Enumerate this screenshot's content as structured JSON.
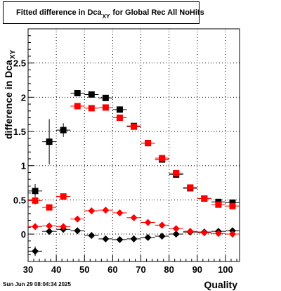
{
  "title": {
    "main": "Fitted difference in Dca",
    "subscript": "XY",
    "suffix": "for Global Rec All NoHits"
  },
  "timestamp": "Sun Jun 29 08:04:34 2025",
  "chart_data": {
    "type": "scatter",
    "xlabel": "Quality",
    "ylabel": "difference in Dca",
    "ylabel_subscript": "XY",
    "xlim": [
      30,
      105
    ],
    "ylim": [
      -0.4,
      3.0
    ],
    "xticks": [
      "30",
      "40",
      "50",
      "60",
      "70",
      "80",
      "90",
      "100"
    ],
    "yticks": [
      "0",
      "0.5",
      "1",
      "1.5",
      "2",
      "2.5"
    ],
    "grid": true,
    "series": [
      {
        "marker": "square",
        "color": "#000000",
        "points": [
          {
            "x": 32.5,
            "y": 0.63,
            "err": 0.1
          },
          {
            "x": 37.5,
            "y": 1.35,
            "err": 0.33
          },
          {
            "x": 42.5,
            "y": 1.52,
            "err": 0.1
          },
          {
            "x": 47.5,
            "y": 2.06,
            "err": 0.03
          },
          {
            "x": 52.5,
            "y": 2.04,
            "err": 0.02
          },
          {
            "x": 57.5,
            "y": 1.99,
            "err": 0.02
          },
          {
            "x": 62.5,
            "y": 1.82,
            "err": 0.02
          },
          {
            "x": 67.5,
            "y": 1.58,
            "err": 0.02
          },
          {
            "x": 72.5,
            "y": 1.33,
            "err": 0.02
          },
          {
            "x": 77.5,
            "y": 1.09,
            "err": 0.02
          },
          {
            "x": 82.5,
            "y": 0.87,
            "err": 0.02
          },
          {
            "x": 87.5,
            "y": 0.67,
            "err": 0.02
          },
          {
            "x": 92.5,
            "y": 0.52,
            "err": 0.02
          },
          {
            "x": 97.5,
            "y": 0.47,
            "err": 0.02
          },
          {
            "x": 102.5,
            "y": 0.46,
            "err": 0.02
          }
        ]
      },
      {
        "marker": "square",
        "color": "#ff0000",
        "points": [
          {
            "x": 32.5,
            "y": 0.49,
            "err": 0.06
          },
          {
            "x": 37.5,
            "y": 0.39,
            "err": 0.03
          },
          {
            "x": 42.5,
            "y": 0.55,
            "err": 0.02
          },
          {
            "x": 47.5,
            "y": 1.87,
            "err": 0.02
          },
          {
            "x": 52.5,
            "y": 1.84,
            "err": 0.02
          },
          {
            "x": 57.5,
            "y": 1.85,
            "err": 0.02
          },
          {
            "x": 62.5,
            "y": 1.7,
            "err": 0.02
          },
          {
            "x": 67.5,
            "y": 1.57,
            "err": 0.02
          },
          {
            "x": 72.5,
            "y": 1.33,
            "err": 0.02
          },
          {
            "x": 77.5,
            "y": 1.11,
            "err": 0.02
          },
          {
            "x": 82.5,
            "y": 0.89,
            "err": 0.02
          },
          {
            "x": 87.5,
            "y": 0.68,
            "err": 0.02
          },
          {
            "x": 92.5,
            "y": 0.52,
            "err": 0.02
          },
          {
            "x": 97.5,
            "y": 0.43,
            "err": 0.02
          },
          {
            "x": 102.5,
            "y": 0.41,
            "err": 0.02
          }
        ]
      },
      {
        "marker": "diamond",
        "color": "#000000",
        "points": [
          {
            "x": 32.5,
            "y": -0.25,
            "err": 0.07
          },
          {
            "x": 37.5,
            "y": 0.04,
            "err": 0.04
          },
          {
            "x": 42.5,
            "y": 0.07,
            "err": 0.03
          },
          {
            "x": 47.5,
            "y": 0.05,
            "err": 0.02
          },
          {
            "x": 52.5,
            "y": -0.02,
            "err": 0.02
          },
          {
            "x": 57.5,
            "y": -0.07,
            "err": 0.02
          },
          {
            "x": 62.5,
            "y": -0.08,
            "err": 0.02
          },
          {
            "x": 67.5,
            "y": -0.07,
            "err": 0.02
          },
          {
            "x": 72.5,
            "y": -0.05,
            "err": 0.02
          },
          {
            "x": 77.5,
            "y": -0.03,
            "err": 0.02
          },
          {
            "x": 82.5,
            "y": 0.0,
            "err": 0.02
          },
          {
            "x": 87.5,
            "y": 0.03,
            "err": 0.02
          },
          {
            "x": 92.5,
            "y": 0.03,
            "err": 0.02
          },
          {
            "x": 97.5,
            "y": 0.04,
            "err": 0.02
          },
          {
            "x": 102.5,
            "y": 0.05,
            "err": 0.02
          }
        ]
      },
      {
        "marker": "diamond",
        "color": "#ff0000",
        "points": [
          {
            "x": 32.5,
            "y": 0.11,
            "err": 0.04
          },
          {
            "x": 37.5,
            "y": 0.12,
            "err": 0.03
          },
          {
            "x": 42.5,
            "y": 0.11,
            "err": 0.02
          },
          {
            "x": 47.5,
            "y": 0.22,
            "err": 0.02
          },
          {
            "x": 52.5,
            "y": 0.34,
            "err": 0.02
          },
          {
            "x": 57.5,
            "y": 0.35,
            "err": 0.02
          },
          {
            "x": 62.5,
            "y": 0.31,
            "err": 0.02
          },
          {
            "x": 67.5,
            "y": 0.24,
            "err": 0.02
          },
          {
            "x": 72.5,
            "y": 0.17,
            "err": 0.02
          },
          {
            "x": 77.5,
            "y": 0.13,
            "err": 0.02
          },
          {
            "x": 82.5,
            "y": 0.08,
            "err": 0.02
          },
          {
            "x": 87.5,
            "y": 0.04,
            "err": 0.02
          },
          {
            "x": 92.5,
            "y": 0.02,
            "err": 0.02
          },
          {
            "x": 97.5,
            "y": 0.01,
            "err": 0.02
          },
          {
            "x": 102.5,
            "y": 0.0,
            "err": 0.02
          }
        ]
      }
    ]
  }
}
